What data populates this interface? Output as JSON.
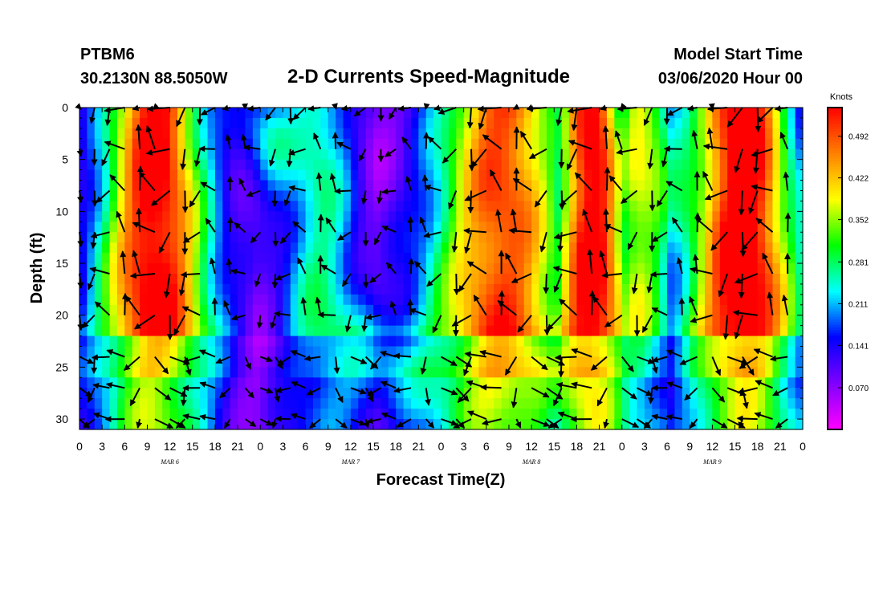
{
  "header": {
    "station_id": "PTBM6",
    "coords": "30.2130N 88.5050W",
    "title": "2-D Currents Speed-Magnitude",
    "model_start_label": "Model Start Time",
    "model_start_value": "03/06/2020 Hour 00"
  },
  "chart_data": {
    "type": "heatmap",
    "title": "2-D Currents Speed-Magnitude",
    "xlabel": "Forecast Time(Z)",
    "ylabel": "Depth (ft)",
    "x_hours": [
      0,
      96
    ],
    "x_tick_labels": [
      "0",
      "3",
      "6",
      "9",
      "12",
      "15",
      "18",
      "21",
      "0",
      "3",
      "6",
      "9",
      "12",
      "15",
      "18",
      "21",
      "0",
      "3",
      "6",
      "9",
      "12",
      "15",
      "18",
      "21",
      "0",
      "3",
      "6",
      "9",
      "12",
      "15",
      "18",
      "21",
      "0"
    ],
    "date_labels": [
      {
        "label": "MAR  6",
        "hour": 12
      },
      {
        "label": "MAR  7",
        "hour": 36
      },
      {
        "label": "MAR  8",
        "hour": 60
      },
      {
        "label": "MAR  9",
        "hour": 84
      }
    ],
    "ylim": [
      0,
      31
    ],
    "y_inverted": true,
    "y_ticks": [
      0,
      5,
      10,
      15,
      20,
      25,
      30
    ],
    "colorbar": {
      "unit": "Knots",
      "min": 0.0,
      "max": 0.54,
      "tick_values": [
        0.07,
        0.141,
        0.211,
        0.281,
        0.352,
        0.422,
        0.492
      ],
      "tick_labels": [
        "0.070",
        "0.141",
        "0.211",
        "0.281",
        "0.352",
        "0.422",
        "0.492"
      ],
      "colors": [
        "#ff00ff",
        "#8000ff",
        "#0000ff",
        "#00ffff",
        "#00ff00",
        "#ffff00",
        "#ff8000",
        "#ff0000"
      ]
    },
    "vector_rows_depth_ft": [
      0,
      4,
      8,
      12,
      16,
      20,
      24,
      27,
      30
    ],
    "vector_step_hours": 2,
    "arrow_color": "#000000"
  }
}
